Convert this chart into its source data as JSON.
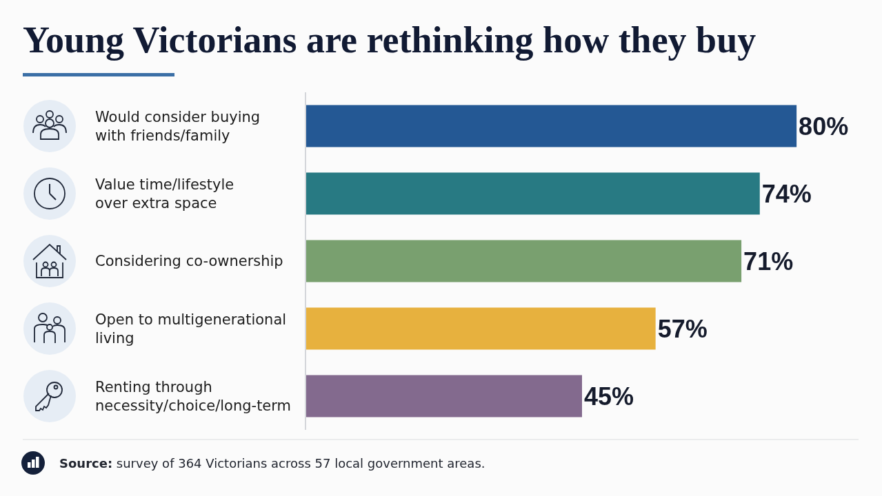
{
  "chart_data": {
    "type": "bar",
    "orientation": "horizontal",
    "title": "Young Victorians are rethinking how they buy",
    "categories": [
      "Would consider buying\nwith friends/family",
      "Value time/lifestyle\nover extra space",
      "Considering co-ownership",
      "Open to multigenerational\nliving",
      "Renting through\nnecessity/choice/long-term"
    ],
    "values": [
      80,
      74,
      71,
      57,
      45
    ],
    "colors": [
      "#245894",
      "#287a83",
      "#79a06f",
      "#e7b13e",
      "#836a8e"
    ],
    "value_labels": [
      "80%",
      "74%",
      "71%",
      "57%",
      "45%"
    ],
    "xlim": [
      0,
      90
    ],
    "tick_labels": "y",
    "annotations": [
      "Source: survey of 364 Victorians across 57 local government areas."
    ]
  }
}
